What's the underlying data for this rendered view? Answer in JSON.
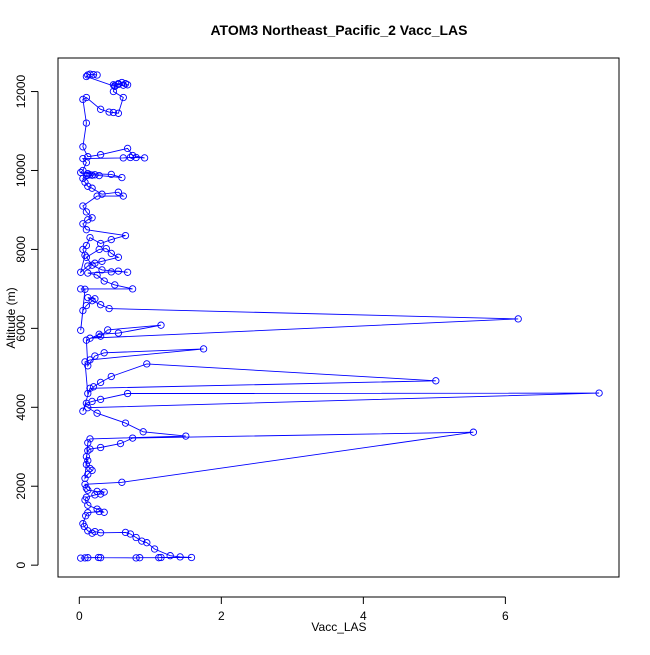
{
  "chart_data": {
    "type": "scatter",
    "title": "ATOM3 Northeast_Pacific_2 Vacc_LAS",
    "xlabel": "Vacc_LAS",
    "ylabel": "Altitude (m)",
    "xlim": [
      -0.3,
      7.6
    ],
    "ylim": [
      -300,
      12850
    ],
    "xticks": [
      0,
      2,
      4,
      6
    ],
    "yticks": [
      0,
      2000,
      4000,
      6000,
      8000,
      10000,
      12000
    ],
    "grid": false,
    "legend": "none",
    "colors": {
      "series": "#0000ff",
      "axis": "#000000"
    },
    "series": [
      {
        "marker": "open-circle",
        "connected": true,
        "points": [
          [
            0.02,
            180
          ],
          [
            0.08,
            185
          ],
          [
            0.12,
            190
          ],
          [
            0.27,
            195
          ],
          [
            0.3,
            190
          ],
          [
            0.8,
            185
          ],
          [
            0.85,
            190
          ],
          [
            1.12,
            190
          ],
          [
            1.15,
            195
          ],
          [
            1.58,
            195
          ],
          [
            1.42,
            210
          ],
          [
            1.28,
            240
          ],
          [
            1.06,
            410
          ],
          [
            0.95,
            570
          ],
          [
            0.88,
            610
          ],
          [
            0.8,
            700
          ],
          [
            0.72,
            790
          ],
          [
            0.65,
            830
          ],
          [
            0.3,
            820
          ],
          [
            0.22,
            850
          ],
          [
            0.18,
            810
          ],
          [
            0.12,
            870
          ],
          [
            0.07,
            980
          ],
          [
            0.05,
            1050
          ],
          [
            0.09,
            1250
          ],
          [
            0.12,
            1330
          ],
          [
            0.28,
            1360
          ],
          [
            0.35,
            1340
          ],
          [
            0.25,
            1420
          ],
          [
            0.12,
            1520
          ],
          [
            0.08,
            1650
          ],
          [
            0.1,
            1720
          ],
          [
            0.22,
            1780
          ],
          [
            0.3,
            1800
          ],
          [
            0.35,
            1850
          ],
          [
            0.25,
            1870
          ],
          [
            0.12,
            1900
          ],
          [
            0.1,
            1950
          ],
          [
            0.08,
            2050
          ],
          [
            0.6,
            2100
          ],
          [
            5.55,
            3370
          ],
          [
            0.75,
            3220
          ],
          [
            0.58,
            3080
          ],
          [
            0.3,
            2980
          ],
          [
            0.15,
            2940
          ],
          [
            0.12,
            2900
          ],
          [
            0.1,
            2750
          ],
          [
            0.12,
            2650
          ],
          [
            0.1,
            2550
          ],
          [
            0.15,
            2450
          ],
          [
            0.18,
            2400
          ],
          [
            0.12,
            2300
          ],
          [
            0.08,
            2200
          ],
          [
            0.12,
            3100
          ],
          [
            0.15,
            3200
          ],
          [
            1.5,
            3270
          ],
          [
            0.9,
            3380
          ],
          [
            0.65,
            3600
          ],
          [
            0.25,
            3850
          ],
          [
            0.12,
            3990
          ],
          [
            7.32,
            4360
          ],
          [
            0.68,
            4350
          ],
          [
            0.3,
            4200
          ],
          [
            0.18,
            4150
          ],
          [
            0.1,
            4100
          ],
          [
            0.05,
            3900
          ],
          [
            0.15,
            4480
          ],
          [
            5.02,
            4670
          ],
          [
            0.95,
            5100
          ],
          [
            0.45,
            4780
          ],
          [
            0.3,
            4630
          ],
          [
            0.2,
            4520
          ],
          [
            0.12,
            4350
          ],
          [
            0.08,
            5150
          ],
          [
            0.15,
            5200
          ],
          [
            1.75,
            5480
          ],
          [
            0.35,
            5380
          ],
          [
            0.22,
            5300
          ],
          [
            0.12,
            5050
          ],
          [
            0.1,
            5700
          ],
          [
            0.28,
            5850
          ],
          [
            0.55,
            5880
          ],
          [
            1.15,
            6080
          ],
          [
            0.4,
            5960
          ],
          [
            0.3,
            5800
          ],
          [
            0.15,
            5750
          ],
          [
            6.18,
            6240
          ],
          [
            0.42,
            6500
          ],
          [
            0.3,
            6600
          ],
          [
            0.18,
            6700
          ],
          [
            0.12,
            6780
          ],
          [
            0.22,
            6750
          ],
          [
            0.1,
            6580
          ],
          [
            0.05,
            6450
          ],
          [
            0.02,
            5950
          ],
          [
            0.08,
            6990
          ],
          [
            0.02,
            7000
          ],
          [
            0.75,
            7000
          ],
          [
            0.5,
            7100
          ],
          [
            0.35,
            7200
          ],
          [
            0.25,
            7350
          ],
          [
            0.12,
            7400
          ],
          [
            0.45,
            7430
          ],
          [
            0.55,
            7450
          ],
          [
            0.68,
            7420
          ],
          [
            0.32,
            7480
          ],
          [
            0.18,
            7600
          ],
          [
            0.1,
            7800
          ],
          [
            0.28,
            8000
          ],
          [
            0.38,
            8020
          ],
          [
            0.45,
            7900
          ],
          [
            0.55,
            7800
          ],
          [
            0.32,
            7700
          ],
          [
            0.22,
            7650
          ],
          [
            0.12,
            7580
          ],
          [
            0.02,
            7420
          ],
          [
            0.08,
            7850
          ],
          [
            0.05,
            8000
          ],
          [
            0.1,
            8100
          ],
          [
            0.15,
            8300
          ],
          [
            0.3,
            8150
          ],
          [
            0.45,
            8250
          ],
          [
            0.65,
            8350
          ],
          [
            0.1,
            8500
          ],
          [
            0.05,
            8650
          ],
          [
            0.12,
            8750
          ],
          [
            0.18,
            8800
          ],
          [
            0.1,
            8950
          ],
          [
            0.05,
            9100
          ],
          [
            0.25,
            9350
          ],
          [
            0.62,
            9350
          ],
          [
            0.55,
            9450
          ],
          [
            0.32,
            9400
          ],
          [
            0.18,
            9550
          ],
          [
            0.12,
            9600
          ],
          [
            0.08,
            9700
          ],
          [
            0.05,
            9800
          ],
          [
            0.1,
            9870
          ],
          [
            0.12,
            9880
          ],
          [
            0.15,
            9890
          ],
          [
            0.18,
            9880
          ],
          [
            0.22,
            9890
          ],
          [
            0.28,
            9870
          ],
          [
            0.6,
            9820
          ],
          [
            0.45,
            9900
          ],
          [
            0.12,
            9920
          ],
          [
            0.02,
            9950
          ],
          [
            0.05,
            10000
          ],
          [
            0.1,
            10200
          ],
          [
            0.05,
            10300
          ],
          [
            0.62,
            10320
          ],
          [
            0.72,
            10330
          ],
          [
            0.8,
            10330
          ],
          [
            0.92,
            10320
          ],
          [
            0.75,
            10380
          ],
          [
            0.68,
            10560
          ],
          [
            0.3,
            10400
          ],
          [
            0.12,
            10350
          ],
          [
            0.05,
            10600
          ],
          [
            0.1,
            11200
          ],
          [
            0.05,
            11800
          ],
          [
            0.1,
            11850
          ],
          [
            0.3,
            11550
          ],
          [
            0.42,
            11480
          ],
          [
            0.48,
            11470
          ],
          [
            0.55,
            11450
          ],
          [
            0.62,
            11850
          ],
          [
            0.48,
            12000
          ],
          [
            0.5,
            12150
          ],
          [
            0.48,
            12170
          ],
          [
            0.55,
            12200
          ],
          [
            0.6,
            12230
          ],
          [
            0.65,
            12200
          ],
          [
            0.68,
            12170
          ],
          [
            0.62,
            12160
          ],
          [
            0.55,
            12180
          ],
          [
            0.5,
            12130
          ],
          [
            0.1,
            12380
          ],
          [
            0.12,
            12420
          ],
          [
            0.15,
            12440
          ],
          [
            0.2,
            12430
          ],
          [
            0.25,
            12420
          ]
        ]
      }
    ]
  }
}
